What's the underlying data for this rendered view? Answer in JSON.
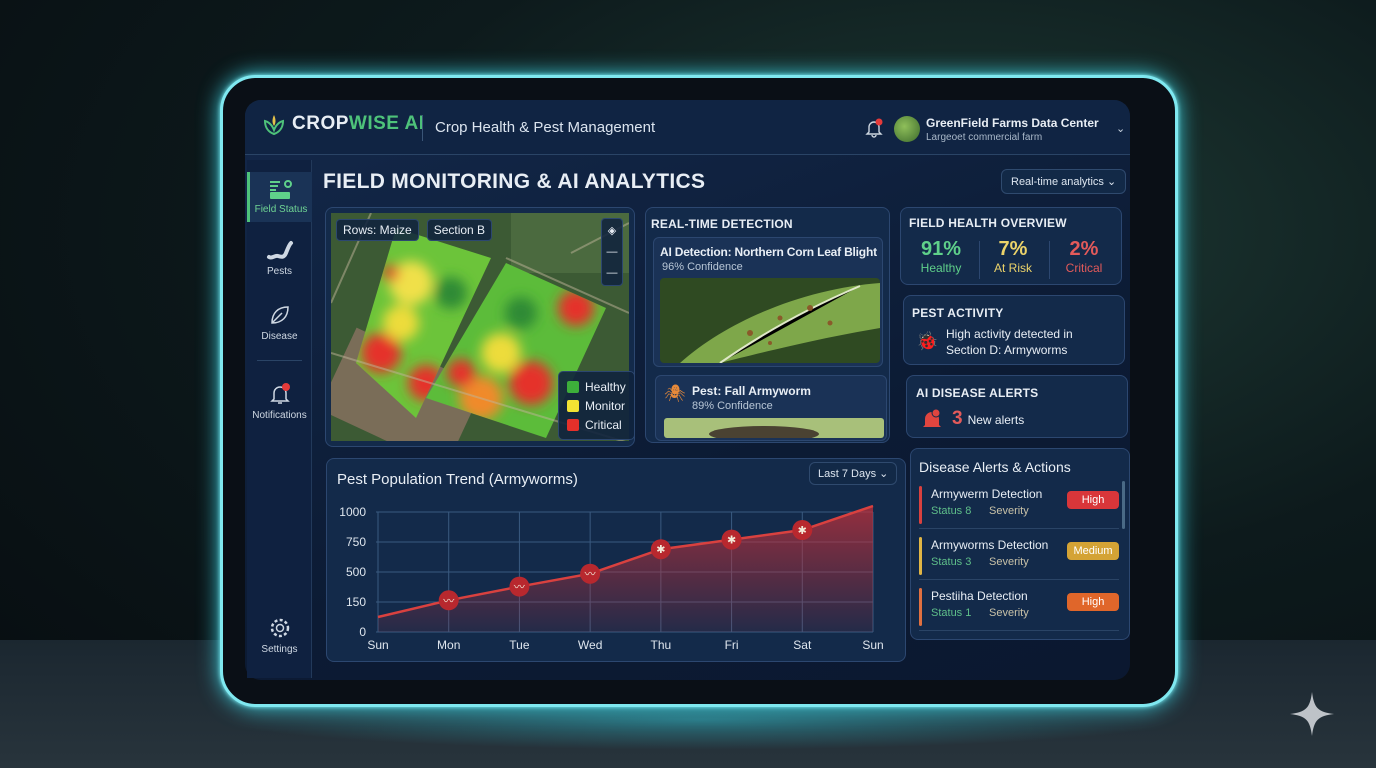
{
  "brand": {
    "name_a": "CROP",
    "name_b": "WISE AI",
    "app_title": "Crop Health & Pest Management"
  },
  "account": {
    "name": "GreenField Farms Data Center",
    "subtitle": "Largeoet commercial farm",
    "notification_dot": true
  },
  "sidebar": {
    "items": [
      {
        "label": "Field Status",
        "icon": "field-status-icon",
        "active": true
      },
      {
        "label": "Pests",
        "icon": "caterpillar-icon"
      },
      {
        "label": "Disease",
        "icon": "leaf-icon"
      },
      {
        "label": "Notifications",
        "icon": "bell-icon"
      },
      {
        "label": "Settings",
        "icon": "gear-icon"
      }
    ]
  },
  "page": {
    "title": "FIELD MONITORING & AI ANALYTICS",
    "mode_select": "Real-time analytics"
  },
  "map": {
    "chips": [
      "Rows: Maize",
      "Section B"
    ],
    "legend": [
      {
        "label": "Healthy",
        "color": "#3dae3a"
      },
      {
        "label": "Monitor",
        "color": "#f2e233"
      },
      {
        "label": "Critical",
        "color": "#e5302a"
      }
    ]
  },
  "detection": {
    "title": "REAL-TIME DETECTION",
    "items": [
      {
        "title": "AI Detection: Northern Corn Leaf Blight",
        "confidence": "96% Confidence"
      },
      {
        "title": "Pest: Fall Armyworm",
        "confidence": "89% Confidence"
      }
    ]
  },
  "health": {
    "title": "FIELD HEALTH OVERVIEW",
    "stats": [
      {
        "value": "91%",
        "label": "Healthy",
        "color": "#5fd08a"
      },
      {
        "value": "7%",
        "label": "At Risk",
        "color": "#ecd36a"
      },
      {
        "value": "2%",
        "label": "Critical",
        "color": "#e35a5a"
      }
    ]
  },
  "pest_activity": {
    "title": "PEST ACTIVITY",
    "line1": "High activity detected in",
    "line2": "Section D: Armyworms"
  },
  "disease_alerts": {
    "title": "AI DISEASE ALERTS",
    "count": "3",
    "text": "New alerts"
  },
  "actions": {
    "title": "Disease Alerts & Actions",
    "rows": [
      {
        "title": "Armywerm Detection",
        "status": "Status 8",
        "severity": "Severity",
        "badge": "High",
        "bar": "#d9413f",
        "badge_color": "#d9363a"
      },
      {
        "title": "Armyworms Detection",
        "status": "Status 3",
        "severity": "Severity",
        "badge": "Medium",
        "bar": "#e0b545",
        "badge_color": "#d4a335"
      },
      {
        "title": "Pestiiha Detection",
        "status": "Status 1",
        "severity": "Severity",
        "badge": "High",
        "bar": "#e07040",
        "badge_color": "#e0662a"
      }
    ]
  },
  "chart_data": {
    "type": "area",
    "title": "Pest Population Trend (Armyworms)",
    "range_select": "Last 7 Days",
    "categories": [
      "Sun",
      "Mon",
      "Tue",
      "Wed",
      "Thu",
      "Fri",
      "Sat",
      "Sun"
    ],
    "values": [
      75,
      170,
      330,
      480,
      690,
      770,
      850,
      1050
    ],
    "yticks": [
      0,
      150,
      500,
      750,
      1000
    ],
    "grid": true,
    "color": "#d9413f"
  }
}
